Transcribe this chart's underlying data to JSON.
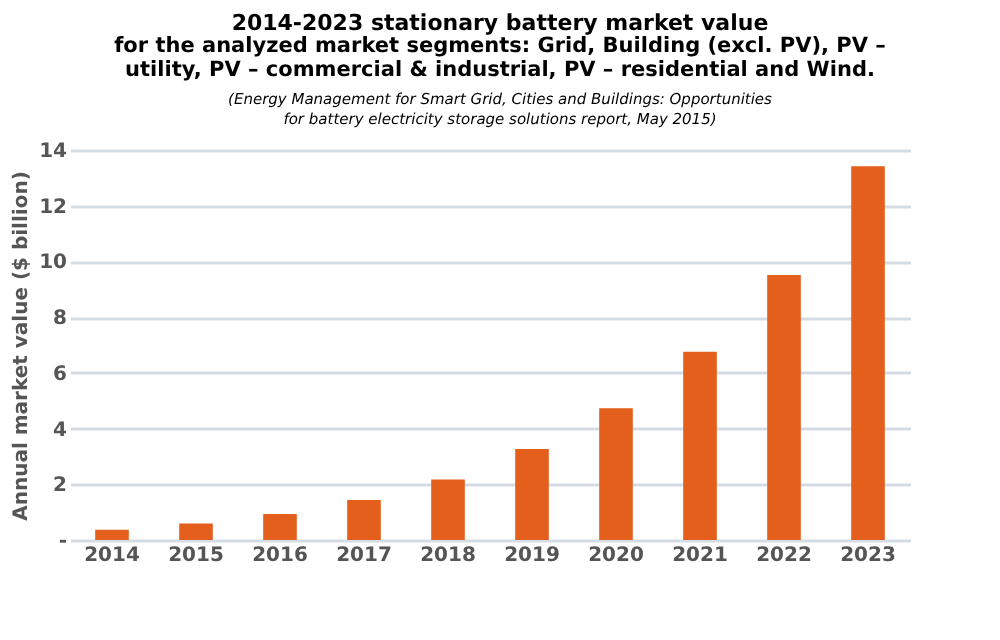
{
  "chart_data": {
    "type": "bar",
    "title": "2014-2023 stationary battery market value",
    "subtitle": "for the analyzed market segments: Grid, Building (excl. PV), PV – utility, PV – commercial & industrial, PV – residential and Wind.",
    "annotations": [
      "(Energy Management for Smart Grid, Cities and Buildings: Opportunities for battery electricity storage solutions report, May 2015)"
    ],
    "ylabel": "Annual market value ($ billion)",
    "categories": [
      "2014",
      "2015",
      "2016",
      "2017",
      "2018",
      "2019",
      "2020",
      "2021",
      "2022",
      "2023"
    ],
    "values": [
      0.37,
      0.59,
      0.93,
      1.44,
      2.17,
      3.27,
      4.73,
      6.76,
      9.51,
      13.42
    ],
    "color": "#e35f1b",
    "ylim": [
      0,
      14
    ],
    "yticks": [
      {
        "value": 0,
        "label": "-"
      },
      2,
      4,
      6,
      8,
      10,
      12,
      14
    ],
    "grid": "y"
  }
}
